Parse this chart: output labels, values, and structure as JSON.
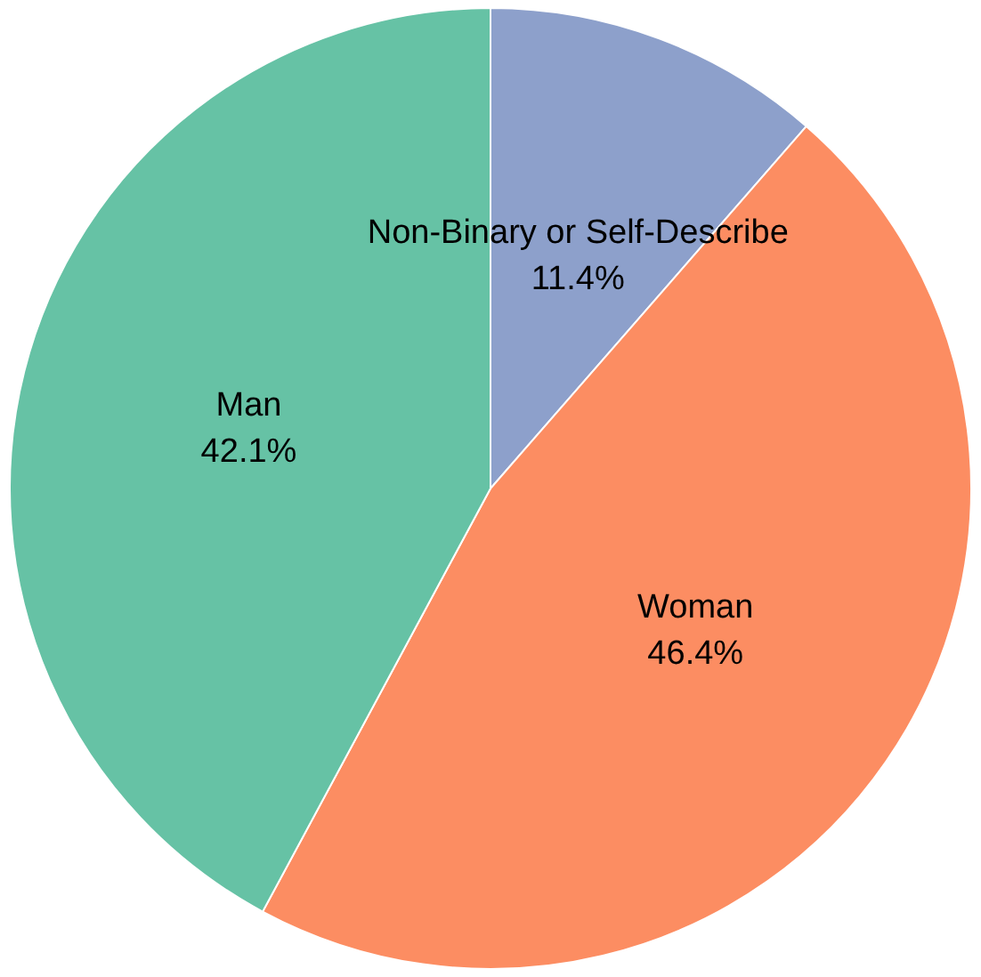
{
  "chart_data": {
    "type": "pie",
    "categories": [
      "Non-Binary or Self-Describe",
      "Woman",
      "Man"
    ],
    "values": [
      11.4,
      46.4,
      42.1
    ],
    "colors": [
      "#8da0cb",
      "#fc8d62",
      "#66c2a5"
    ],
    "value_labels": [
      "11.4%",
      "46.4%",
      "42.1%"
    ]
  }
}
